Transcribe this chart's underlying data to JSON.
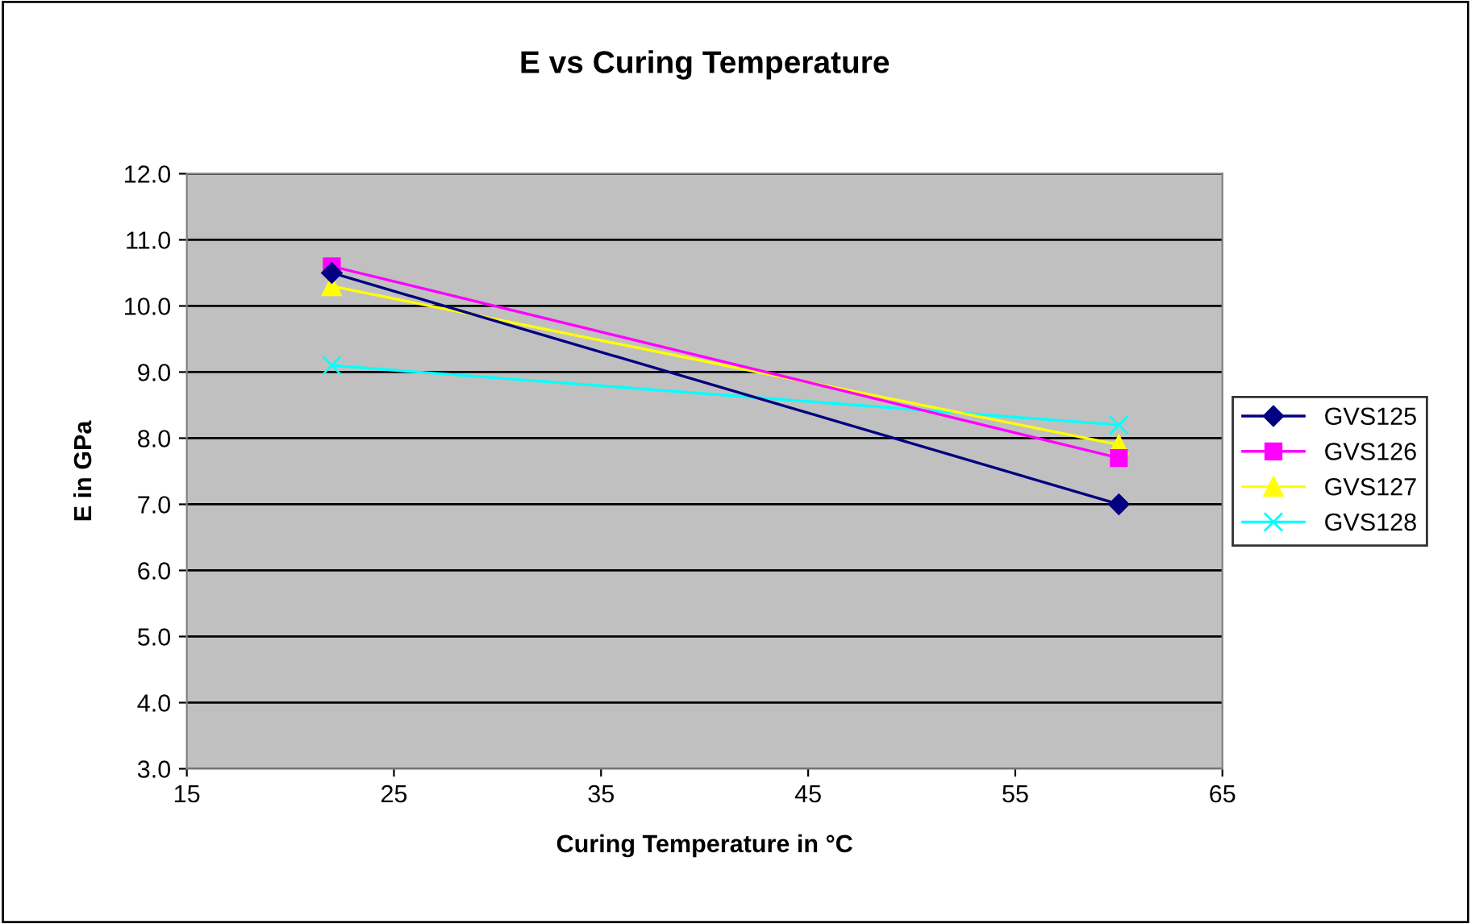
{
  "chart_data": {
    "type": "line",
    "title": "E vs Curing Temperature",
    "xlabel": "Curing Temperature in °C",
    "ylabel": "E in GPa",
    "x": [
      22,
      60
    ],
    "series": [
      {
        "name": "GVS125",
        "color": "#000080",
        "marker": "diamond",
        "values": [
          10.5,
          7.0
        ]
      },
      {
        "name": "GVS126",
        "color": "#ff00ff",
        "marker": "square",
        "values": [
          10.6,
          7.7
        ]
      },
      {
        "name": "GVS127",
        "color": "#ffff00",
        "marker": "triangle",
        "values": [
          10.3,
          7.9
        ]
      },
      {
        "name": "GVS128",
        "color": "#00ffff",
        "marker": "cross",
        "values": [
          9.1,
          8.2
        ]
      }
    ],
    "xlim": [
      15,
      65
    ],
    "xticks": [
      15,
      25,
      35,
      45,
      55,
      65
    ],
    "ylim": [
      3.0,
      12.0
    ],
    "yticks": [
      {
        "value": 3,
        "label": "3.0"
      },
      {
        "value": 4,
        "label": "4.0"
      },
      {
        "value": 5,
        "label": "5.0"
      },
      {
        "value": 6,
        "label": "6.0"
      },
      {
        "value": 7,
        "label": "7.0"
      },
      {
        "value": 8,
        "label": "8.0"
      },
      {
        "value": 9,
        "label": "9.0"
      },
      {
        "value": 10,
        "label": "10.0"
      },
      {
        "value": 11,
        "label": "11.0"
      },
      {
        "value": 12,
        "label": "12.0"
      }
    ],
    "grid": "y",
    "legend": "right",
    "line_style": "solid"
  }
}
